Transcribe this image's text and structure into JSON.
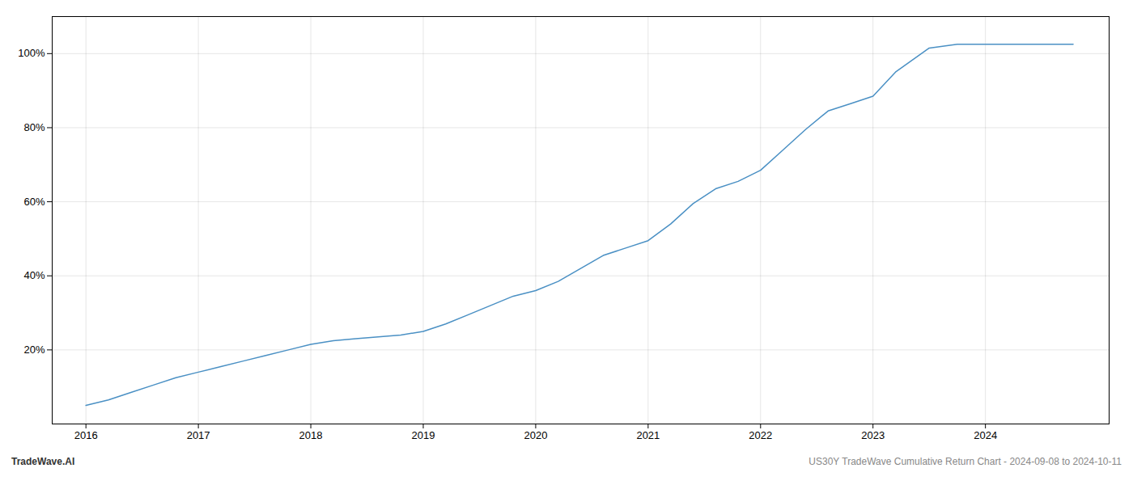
{
  "chart_data": {
    "type": "line",
    "x": [
      2016.0,
      2016.2,
      2016.4,
      2016.6,
      2016.8,
      2017.0,
      2017.2,
      2017.4,
      2017.6,
      2017.8,
      2018.0,
      2018.2,
      2018.4,
      2018.6,
      2018.8,
      2019.0,
      2019.2,
      2019.4,
      2019.6,
      2019.8,
      2020.0,
      2020.2,
      2020.4,
      2020.6,
      2020.8,
      2021.0,
      2021.2,
      2021.4,
      2021.6,
      2021.8,
      2022.0,
      2022.2,
      2022.4,
      2022.6,
      2022.8,
      2023.0,
      2023.2,
      2023.5,
      2023.75,
      2024.0,
      2024.2,
      2024.5,
      2024.78
    ],
    "values": [
      5.0,
      6.5,
      8.5,
      10.5,
      12.5,
      14.0,
      15.5,
      17.0,
      18.5,
      20.0,
      21.5,
      22.5,
      23.0,
      23.5,
      24.0,
      25.0,
      27.0,
      29.5,
      32.0,
      34.5,
      36.0,
      38.5,
      42.0,
      45.5,
      47.5,
      49.5,
      54.0,
      59.5,
      63.5,
      65.5,
      68.5,
      74.0,
      79.5,
      84.5,
      86.5,
      88.5,
      95.0,
      101.5,
      102.5,
      102.5,
      102.5,
      102.5,
      102.5
    ],
    "color": "#4a90c4",
    "xlim": [
      2015.7,
      2025.1
    ],
    "ylim": [
      0,
      110
    ],
    "xticks": [
      2016,
      2017,
      2018,
      2019,
      2020,
      2021,
      2022,
      2023,
      2024
    ],
    "yticks": [
      {
        "value": 20,
        "label": "20%"
      },
      {
        "value": 40,
        "label": "40%"
      },
      {
        "value": 60,
        "label": "60%"
      },
      {
        "value": 80,
        "label": "80%"
      },
      {
        "value": 100,
        "label": "100%"
      }
    ],
    "grid": true,
    "annotations": [
      "TradeWave.AI",
      "US30Y TradeWave Cumulative Return Chart - 2024-09-08 to 2024-10-11"
    ]
  }
}
